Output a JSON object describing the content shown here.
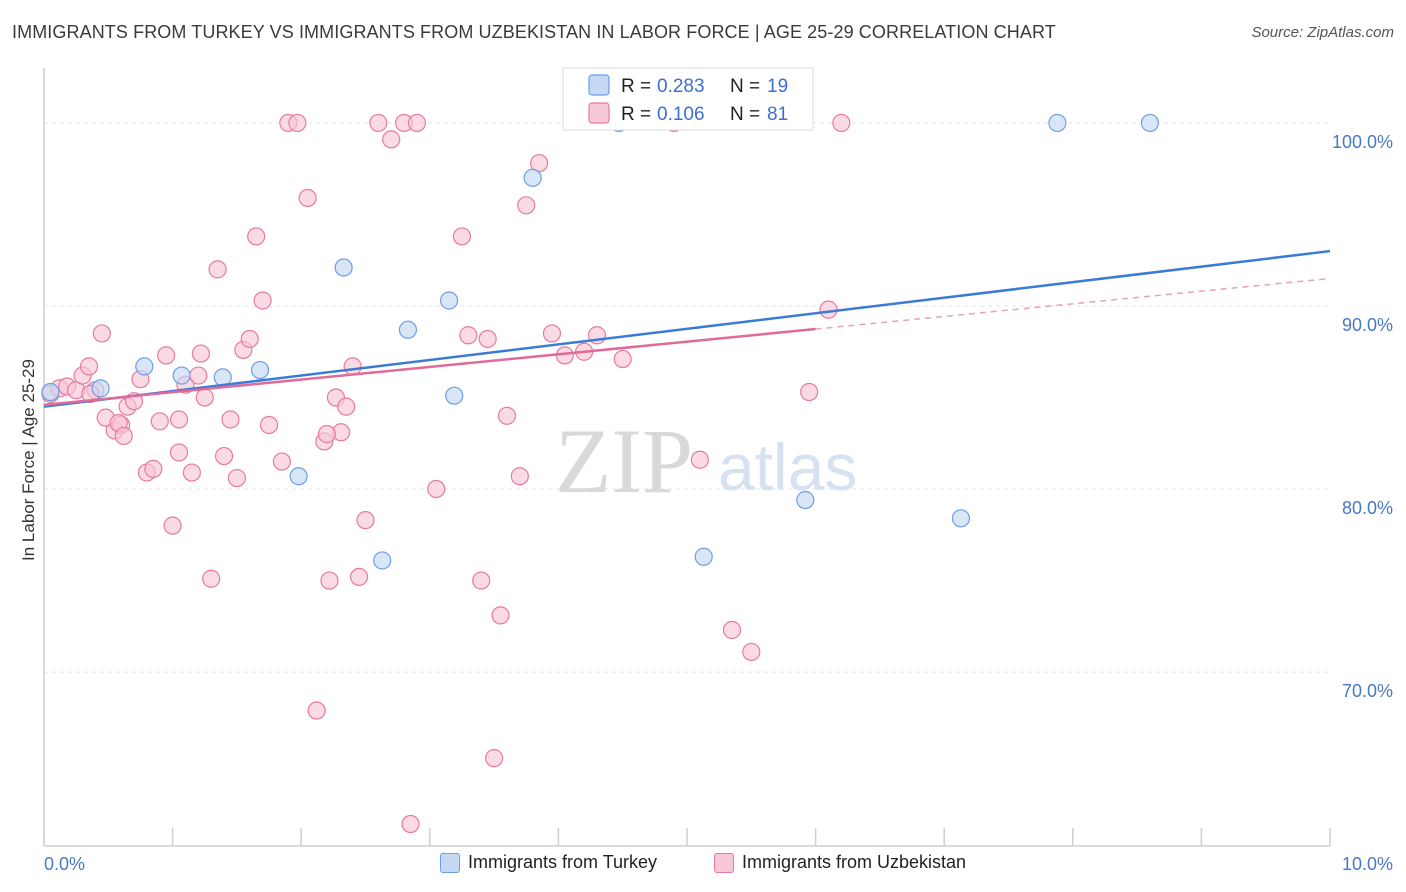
{
  "title": "IMMIGRANTS FROM TURKEY VS IMMIGRANTS FROM UZBEKISTAN IN LABOR FORCE | AGE 25-29 CORRELATION CHART",
  "source": "Source: ZipAtlas.com",
  "watermark": {
    "zip": "ZIP",
    "atlas": "atlas"
  },
  "chart_data": {
    "type": "scatter",
    "ylabel": "In Labor Force | Age 25-29",
    "xlim": [
      0,
      10
    ],
    "ylim": [
      60.5,
      103
    ],
    "x_ticks": [
      "0.0%",
      "10.0%"
    ],
    "y_ticks": [
      {
        "value": 100,
        "label": "100.0%"
      },
      {
        "value": 90,
        "label": "90.0%"
      },
      {
        "value": 80,
        "label": "80.0%"
      },
      {
        "value": 70,
        "label": "70.0%"
      }
    ],
    "grid": true,
    "legend": {
      "position": "top-center",
      "r_label": "R =",
      "n_label": "N =",
      "entries": [
        {
          "r": "0.283",
          "n": "19"
        },
        {
          "r": "0.106",
          "n": "81"
        }
      ]
    },
    "series": [
      {
        "name": "Immigrants from Turkey",
        "color": "#6d9ee8",
        "fill": "#c5d9f5",
        "trend": {
          "x": [
            0,
            10
          ],
          "y": [
            84.5,
            93.0
          ],
          "solid_to": 10
        },
        "points": [
          [
            0.05,
            85.3
          ],
          [
            0.44,
            85.5
          ],
          [
            0.78,
            86.7
          ],
          [
            1.07,
            86.2
          ],
          [
            1.39,
            86.1
          ],
          [
            1.68,
            86.5
          ],
          [
            1.98,
            80.7
          ],
          [
            2.33,
            92.1
          ],
          [
            2.63,
            76.1
          ],
          [
            2.83,
            88.7
          ],
          [
            3.15,
            90.3
          ],
          [
            3.19,
            85.1
          ],
          [
            3.8,
            97.0
          ],
          [
            4.47,
            100.0
          ],
          [
            5.13,
            76.3
          ],
          [
            5.92,
            79.4
          ],
          [
            7.13,
            78.4
          ],
          [
            7.88,
            100.0
          ],
          [
            8.6,
            100.0
          ]
        ]
      },
      {
        "name": "Immigrants from Uzbekistan",
        "color": "#e8799f",
        "fill": "#f8c8d7",
        "trend": {
          "x": [
            0,
            10
          ],
          "y": [
            84.6,
            91.5
          ],
          "solid_to": 6.0
        },
        "points": [
          [
            0.05,
            85.2
          ],
          [
            0.12,
            85.5
          ],
          [
            0.18,
            85.6
          ],
          [
            0.25,
            85.4
          ],
          [
            0.3,
            86.2
          ],
          [
            0.35,
            86.7
          ],
          [
            0.4,
            85.4
          ],
          [
            0.45,
            88.5
          ],
          [
            0.55,
            83.2
          ],
          [
            0.6,
            83.5
          ],
          [
            0.65,
            84.5
          ],
          [
            0.7,
            84.8
          ],
          [
            0.75,
            86.0
          ],
          [
            0.8,
            80.9
          ],
          [
            0.85,
            81.1
          ],
          [
            0.9,
            83.7
          ],
          [
            0.95,
            87.3
          ],
          [
            1.0,
            78.0
          ],
          [
            1.05,
            83.8
          ],
          [
            1.1,
            85.7
          ],
          [
            1.15,
            80.9
          ],
          [
            1.2,
            86.2
          ],
          [
            1.25,
            85.0
          ],
          [
            1.3,
            75.1
          ],
          [
            1.35,
            92.0
          ],
          [
            1.4,
            81.8
          ],
          [
            1.45,
            83.8
          ],
          [
            1.5,
            80.6
          ],
          [
            1.55,
            87.6
          ],
          [
            1.6,
            88.2
          ],
          [
            1.65,
            93.8
          ],
          [
            1.7,
            90.3
          ],
          [
            1.75,
            83.5
          ],
          [
            1.85,
            81.5
          ],
          [
            1.9,
            100.0
          ],
          [
            1.97,
            100.0
          ],
          [
            2.05,
            95.9
          ],
          [
            2.12,
            67.9
          ],
          [
            2.18,
            82.6
          ],
          [
            2.22,
            75.0
          ],
          [
            2.27,
            85.0
          ],
          [
            2.31,
            83.1
          ],
          [
            2.35,
            84.5
          ],
          [
            2.4,
            86.7
          ],
          [
            2.45,
            75.2
          ],
          [
            2.5,
            78.3
          ],
          [
            2.6,
            100.0
          ],
          [
            2.7,
            99.1
          ],
          [
            2.8,
            100.0
          ],
          [
            2.85,
            61.7
          ],
          [
            2.9,
            100.0
          ],
          [
            3.05,
            80.0
          ],
          [
            3.25,
            93.8
          ],
          [
            3.3,
            88.4
          ],
          [
            3.4,
            75.0
          ],
          [
            3.45,
            88.2
          ],
          [
            3.5,
            65.3
          ],
          [
            3.55,
            73.1
          ],
          [
            3.6,
            84.0
          ],
          [
            3.7,
            80.7
          ],
          [
            3.75,
            95.5
          ],
          [
            3.85,
            97.8
          ],
          [
            3.95,
            88.5
          ],
          [
            4.05,
            87.3
          ],
          [
            4.2,
            87.5
          ],
          [
            4.3,
            88.4
          ],
          [
            4.5,
            87.1
          ],
          [
            4.9,
            100.0
          ],
          [
            5.1,
            81.6
          ],
          [
            5.35,
            72.3
          ],
          [
            5.5,
            71.1
          ],
          [
            5.95,
            85.3
          ],
          [
            6.1,
            89.8
          ],
          [
            6.2,
            100.0
          ],
          [
            1.22,
            87.4
          ],
          [
            0.36,
            85.2
          ],
          [
            0.48,
            83.9
          ],
          [
            0.58,
            83.6
          ],
          [
            0.62,
            82.9
          ],
          [
            1.05,
            82.0
          ],
          [
            2.2,
            83.0
          ]
        ]
      }
    ]
  }
}
